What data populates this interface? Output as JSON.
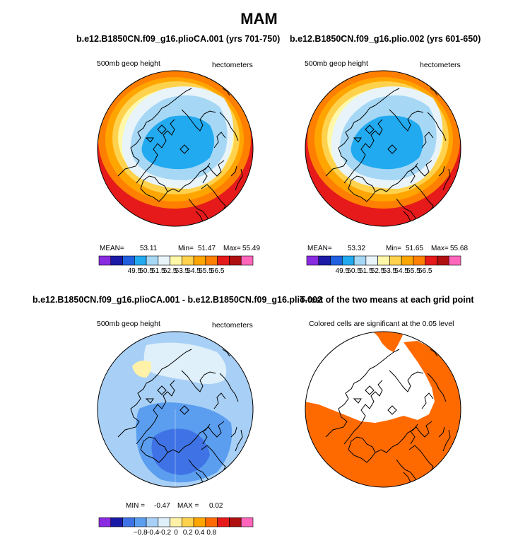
{
  "figure": {
    "title": "MAM",
    "hemisphere_map": "Northern Hemisphere polar stereographic"
  },
  "colors": {
    "gph_palette": [
      "#8a2be2",
      "#1a1aa6",
      "#1f5fe0",
      "#22aaf0",
      "#a6d8f5",
      "#e8f4fa",
      "#fff8a8",
      "#ffd24d",
      "#ffa500",
      "#ff7f00",
      "#e61a1a",
      "#b01010",
      "#ff66bb"
    ],
    "diff_palette": [
      "#8a2be2",
      "#1a1aa6",
      "#3f73e5",
      "#5b9ef0",
      "#a8d0f6",
      "#dff0fb",
      "#fff2a8",
      "#ffd24d",
      "#ffa500",
      "#ff6a00",
      "#e61a1a",
      "#b01010",
      "#ff66bb"
    ],
    "significance": "#ff6a00",
    "coast": "#000000"
  },
  "chart_data": [
    {
      "type": "heatmap",
      "panel": "top-left",
      "title": "b.e12.B1850CN.f09_g16.plioCA.001 (yrs 701-750)",
      "left_label": "500mb geop height",
      "right_label": "hectometers",
      "stats": {
        "mean_label": "MEAN=",
        "mean": "53.11",
        "min_label": "Min=",
        "min": "51.47",
        "max_label": "Max=",
        "max": "55.49"
      },
      "colorbar_labels": [
        "49.5",
        "50.5",
        "51.5",
        "52.5",
        "53.5",
        "54.5",
        "55.5",
        "56.5"
      ],
      "field_levels_outer_to_inner": [
        "55.5",
        "54.5",
        "53.5",
        "53.5",
        "52.5",
        "51.5",
        "51.5"
      ]
    },
    {
      "type": "heatmap",
      "panel": "top-right",
      "title": "b.e12.B1850CN.f09_g16.plio.002 (yrs 601-650)",
      "left_label": "500mb geop height",
      "right_label": "hectometers",
      "stats": {
        "mean_label": "MEAN=",
        "mean": "53.32",
        "min_label": "Min=",
        "min": "51.65",
        "max_label": "Max=",
        "max": "55.68"
      },
      "colorbar_labels": [
        "49.5",
        "50.5",
        "51.5",
        "52.5",
        "53.5",
        "54.5",
        "55.5",
        "56.5"
      ],
      "field_levels_outer_to_inner": [
        "55.5",
        "54.5",
        "53.5",
        "53.5",
        "52.5",
        "51.5",
        "51.5"
      ]
    },
    {
      "type": "heatmap",
      "panel": "bottom-left",
      "title": "b.e12.B1850CN.f09_g16.plioCA.001 - b.e12.B1850CN.f09_g16.plio.002",
      "left_label": "500mb geop height",
      "right_label": "hectometers",
      "stats": {
        "min_label": "MIN =",
        "min": "-0.47",
        "max_label": "MAX =",
        "max": "0.02"
      },
      "colorbar_labels": [
        "−0.8",
        "−0.4",
        "−0.2",
        "0",
        "0.2",
        "0.4",
        "0.8"
      ]
    },
    {
      "type": "heatmap",
      "panel": "bottom-right",
      "title": "T-test of the two means at each grid point",
      "left_label": "Colored cells are significant at the 0.05 level",
      "significance_level": 0.05
    }
  ]
}
